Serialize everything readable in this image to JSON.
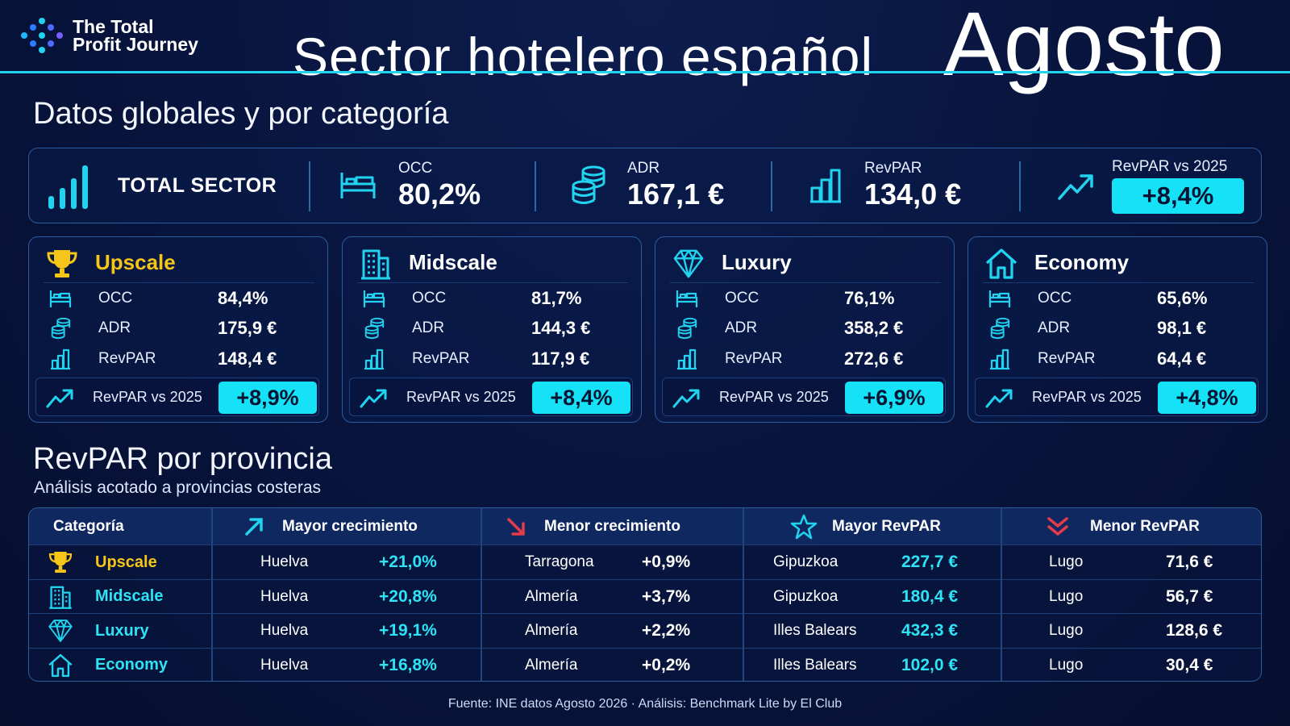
{
  "brand": {
    "line1": "The Total",
    "line2": "Profit Journey"
  },
  "title": {
    "main": "Sector hotelero español",
    "month": "Agosto"
  },
  "section1": {
    "title": "Datos globales y por categoría"
  },
  "total": {
    "name": "TOTAL SECTOR",
    "occ_label": "OCC",
    "occ_value": "80,2%",
    "adr_label": "ADR",
    "adr_value": "167,1 €",
    "revpar_label": "RevPAR",
    "revpar_value": "134,0 €",
    "vs_label": "RevPAR vs 2025",
    "vs_value": "+8,4%"
  },
  "colors": {
    "accent": "#15e2f6",
    "gold": "#f5c518",
    "background": "#07133a",
    "down": "#e53b4a"
  },
  "categories": [
    {
      "name": "Upscale",
      "icon": "trophy-icon",
      "color": "#f5c518",
      "occ_label": "OCC",
      "occ": "84,4%",
      "adr_label": "ADR",
      "adr": "175,9 €",
      "revpar_label": "RevPAR",
      "revpar": "148,4 €",
      "vs_label": "RevPAR vs 2025",
      "vs": "+8,9%"
    },
    {
      "name": "Midscale",
      "icon": "building-icon",
      "color": "#ffffff",
      "occ_label": "OCC",
      "occ": "81,7%",
      "adr_label": "ADR",
      "adr": "144,3 €",
      "revpar_label": "RevPAR",
      "revpar": "117,9 €",
      "vs_label": "RevPAR vs 2025",
      "vs": "+8,4%"
    },
    {
      "name": "Luxury",
      "icon": "diamond-icon",
      "color": "#ffffff",
      "occ_label": "OCC",
      "occ": "76,1%",
      "adr_label": "ADR",
      "adr": "358,2 €",
      "revpar_label": "RevPAR",
      "revpar": "272,6 €",
      "vs_label": "RevPAR vs 2025",
      "vs": "+6,9%"
    },
    {
      "name": "Economy",
      "icon": "house-icon",
      "color": "#ffffff",
      "occ_label": "OCC",
      "occ": "65,6%",
      "adr_label": "ADR",
      "adr": "98,1 €",
      "revpar_label": "RevPAR",
      "revpar": "64,4 €",
      "vs_label": "RevPAR vs 2025",
      "vs": "+4,8%"
    }
  ],
  "section2": {
    "title": "RevPAR por provincia",
    "subtitle": "Análisis acotado a provincias costeras"
  },
  "table": {
    "headers": {
      "category": "Categoría",
      "max_growth": "Mayor crecimiento",
      "min_growth": "Menor crecimiento",
      "max_revpar": "Mayor RevPAR",
      "min_revpar": "Menor RevPAR"
    },
    "rows": [
      {
        "category": "Upscale",
        "icon": "trophy-icon",
        "max_growth_prov": "Huelva",
        "max_growth_val": "+21,0%",
        "min_growth_prov": "Tarragona",
        "min_growth_val": "+0,9%",
        "max_revpar_prov": "Gipuzkoa",
        "max_revpar_val": "227,7 €",
        "min_revpar_prov": "Lugo",
        "min_revpar_val": "71,6 €"
      },
      {
        "category": "Midscale",
        "icon": "building-icon",
        "max_growth_prov": "Huelva",
        "max_growth_val": "+20,8%",
        "min_growth_prov": "Almería",
        "min_growth_val": "+3,7%",
        "max_revpar_prov": "Gipuzkoa",
        "max_revpar_val": "180,4 €",
        "min_revpar_prov": "Lugo",
        "min_revpar_val": "56,7 €"
      },
      {
        "category": "Luxury",
        "icon": "diamond-icon",
        "max_growth_prov": "Huelva",
        "max_growth_val": "+19,1%",
        "min_growth_prov": "Almería",
        "min_growth_val": "+2,2%",
        "max_revpar_prov": "Illes Balears",
        "max_revpar_val": "432,3 €",
        "min_revpar_prov": "Lugo",
        "min_revpar_val": "128,6 €"
      },
      {
        "category": "Economy",
        "icon": "house-icon",
        "max_growth_prov": "Huelva",
        "max_growth_val": "+16,8%",
        "min_growth_prov": "Almería",
        "min_growth_val": "+0,2%",
        "max_revpar_prov": "Illes Balears",
        "max_revpar_val": "102,0 €",
        "min_revpar_prov": "Lugo",
        "min_revpar_val": "30,4 €"
      }
    ]
  },
  "footer": {
    "text": "Fuente: INE datos Agosto 2026 · Análisis: Benchmark Lite by El Club"
  }
}
